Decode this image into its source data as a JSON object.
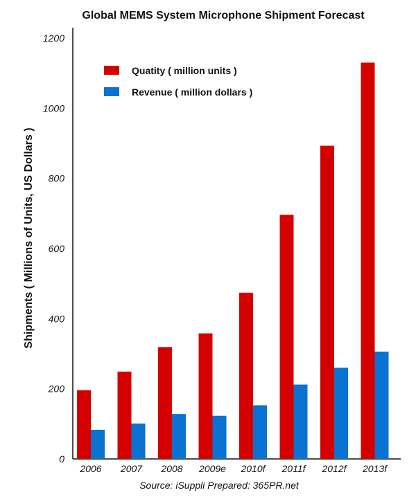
{
  "chart_data": {
    "type": "bar",
    "title": "Global MEMS System Microphone Shipment Forecast",
    "ylabel": "Shipments ( Millions of Units, US Dollars )",
    "xlabel": "",
    "ylim": [
      0,
      1200
    ],
    "yticks": [
      0,
      200,
      400,
      600,
      800,
      1000,
      1200
    ],
    "categories": [
      "2006",
      "2007",
      "2008",
      "2009e",
      "2010f",
      "2011f",
      "2012f",
      "2013f"
    ],
    "series": [
      {
        "name": "Quatity ( million units )",
        "color": "#d40000",
        "values": [
          196,
          249,
          319,
          358,
          474,
          696,
          893,
          1130
        ]
      },
      {
        "name": "Revenue ( million dollars )",
        "color": "#0a72d0",
        "values": [
          83,
          101,
          128,
          123,
          153,
          212,
          260,
          306
        ]
      }
    ],
    "legend_position": "top-left",
    "grid": false,
    "source": "Source: iSuppli     Prepared: 365PR.net"
  }
}
